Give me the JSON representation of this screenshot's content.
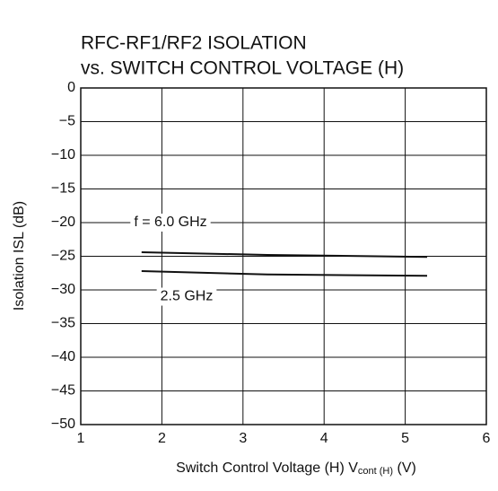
{
  "chart_data": {
    "type": "line",
    "title": [
      "RFC-RF1/RF2  ISOLATION",
      "vs. SWITCH CONTROL VOLTAGE (H)"
    ],
    "xlabel": "Switch Control Voltage (H)  V",
    "xlabel_subscript": "cont (H)",
    "xlabel_unit": " (V)",
    "ylabel": "Isolation  ISL (dB)",
    "x": [
      1.75,
      3.3,
      5.27
    ],
    "series": [
      {
        "name": "f = 6.0 GHz",
        "color": "#111111",
        "values": [
          -24.4,
          -24.8,
          -25.1
        ]
      },
      {
        "name": "2.5 GHz",
        "color": "#111111",
        "values": [
          -27.2,
          -27.7,
          -27.9
        ]
      }
    ],
    "xlim": [
      1,
      6
    ],
    "xticks": [
      1,
      2,
      3,
      4,
      5,
      6
    ],
    "ylim": [
      -50,
      0
    ],
    "yticks": [
      0,
      {
        "value": -5,
        "label": "−5"
      },
      {
        "value": -10,
        "label": "−10"
      },
      {
        "value": -15,
        "label": "−15"
      },
      {
        "value": -20,
        "label": "−20"
      },
      {
        "value": -25,
        "label": "−25"
      },
      {
        "value": -30,
        "label": "−30"
      },
      {
        "value": -35,
        "label": "−35"
      },
      {
        "value": -40,
        "label": "−40"
      },
      {
        "value": -45,
        "label": "−45"
      },
      {
        "value": -50,
        "label": "−50"
      }
    ],
    "grid": true
  }
}
